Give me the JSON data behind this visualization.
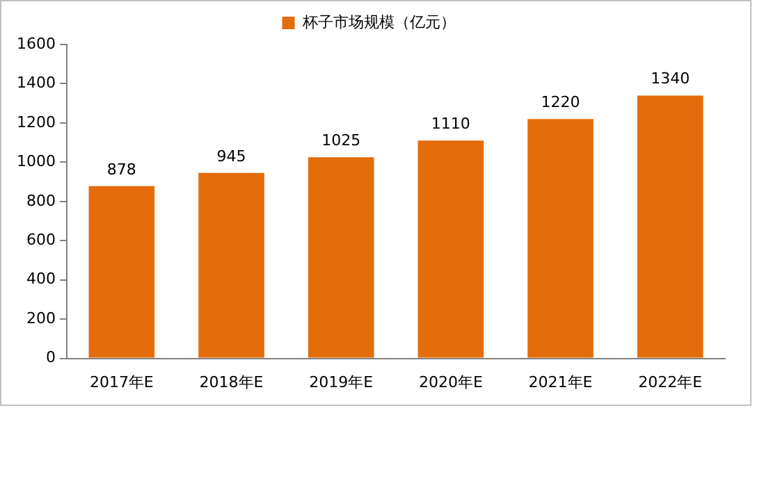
{
  "chart_data": {
    "type": "bar",
    "categories": [
      "2017年E",
      "2018年E",
      "2019年E",
      "2020年E",
      "2021年E",
      "2022年E"
    ],
    "series": [
      {
        "name": "杯子市场规模（亿元）",
        "color": "#e46c0a",
        "values": [
          878,
          945,
          1025,
          1110,
          1220,
          1340
        ]
      }
    ],
    "ylim": [
      0,
      1600
    ],
    "yticks": [
      0,
      200,
      400,
      600,
      800,
      1000,
      1200,
      1400,
      1600
    ],
    "grid": false,
    "legend": "top",
    "data_labels": true
  }
}
